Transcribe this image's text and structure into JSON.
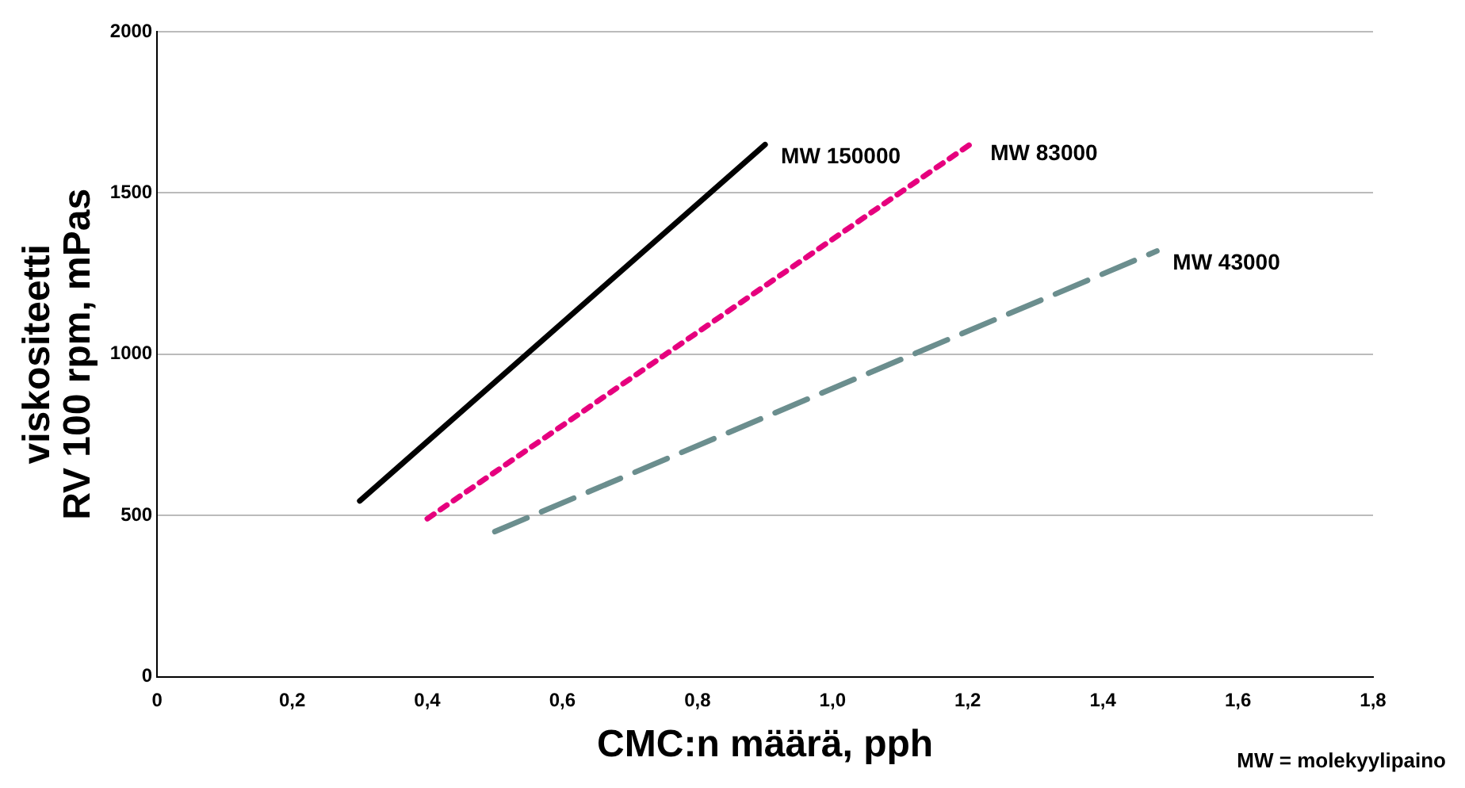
{
  "chart_data": {
    "type": "line",
    "xlabel": "CMC:n määrä, pph",
    "ylabel": "viskositeetti RV 100 rpm, mPas",
    "xlim": [
      0,
      1.8
    ],
    "xticks": [
      0,
      {
        "value": 0.2,
        "label": "0,2"
      },
      {
        "value": 0.4,
        "label": "0,4"
      },
      {
        "value": 0.6,
        "label": "0,6"
      },
      {
        "value": 0.8,
        "label": "0,8"
      },
      {
        "value": 1,
        "label": "1,0"
      },
      {
        "value": 1.2,
        "label": "1,2"
      },
      {
        "value": 1.4,
        "label": "1,4"
      },
      {
        "value": 1.6,
        "label": "1,6"
      },
      {
        "value": 1.8,
        "label": "1,8"
      }
    ],
    "ylim": [
      0,
      2000
    ],
    "yticks": [
      0,
      500,
      1000,
      1500,
      2000
    ],
    "grid": "y",
    "legend": false,
    "marker": "none",
    "series": [
      {
        "name": "MW 150000",
        "color": "#000000",
        "line_style": "solid",
        "x": [
          0.3,
          0.9
        ],
        "values": [
          545,
          1650
        ]
      },
      {
        "name": "MW 83000",
        "color": "#e6007e",
        "line_style": "dotted",
        "x": [
          0.4,
          1.21
        ],
        "values": [
          490,
          1660
        ]
      },
      {
        "name": "MW 43000",
        "color": "#6b8e8e",
        "line_style": "dashed",
        "x": [
          0.5,
          1.48
        ],
        "values": [
          450,
          1320
        ]
      }
    ],
    "annotations": [
      "MW = molekyylipaino"
    ]
  }
}
